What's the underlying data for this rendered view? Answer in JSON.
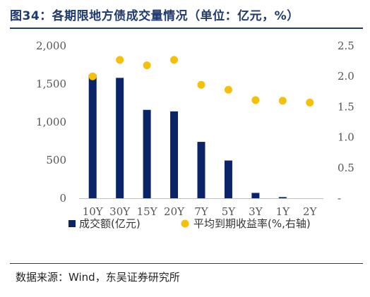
{
  "title": "图34：各期限地方债成交量情况（单位：亿元，%）",
  "source": "数据来源：Wind，东吴证券研究所",
  "colors": {
    "bar": "#0b2468",
    "dot": "#f5bf0a",
    "header": "#1f3a6e"
  },
  "chart_data": {
    "type": "bar",
    "categories": [
      "10Y",
      "30Y",
      "15Y",
      "20Y",
      "7Y",
      "5Y",
      "3Y",
      "1Y",
      "2Y"
    ],
    "series": [
      {
        "name": "成交额(亿元)",
        "type": "bar",
        "axis": "left",
        "values": [
          1620,
          1580,
          1160,
          1140,
          740,
          495,
          70,
          15,
          0
        ]
      },
      {
        "name": "平均到期收益率(%,右轴)",
        "type": "scatter",
        "axis": "right",
        "values": [
          2.0,
          2.27,
          2.18,
          2.27,
          1.86,
          1.78,
          1.61,
          1.6,
          1.57
        ]
      }
    ],
    "left_axis": {
      "ylim": [
        0,
        2000
      ],
      "ticks": [
        "0",
        "500",
        "1,000",
        "1,500",
        "2,000"
      ]
    },
    "right_axis": {
      "ylim": [
        0,
        2.5
      ],
      "ticks": [
        "-",
        "0.5",
        "1.0",
        "1.5",
        "2.0",
        "2.5"
      ]
    },
    "grid": false,
    "legend_position": "bottom"
  }
}
